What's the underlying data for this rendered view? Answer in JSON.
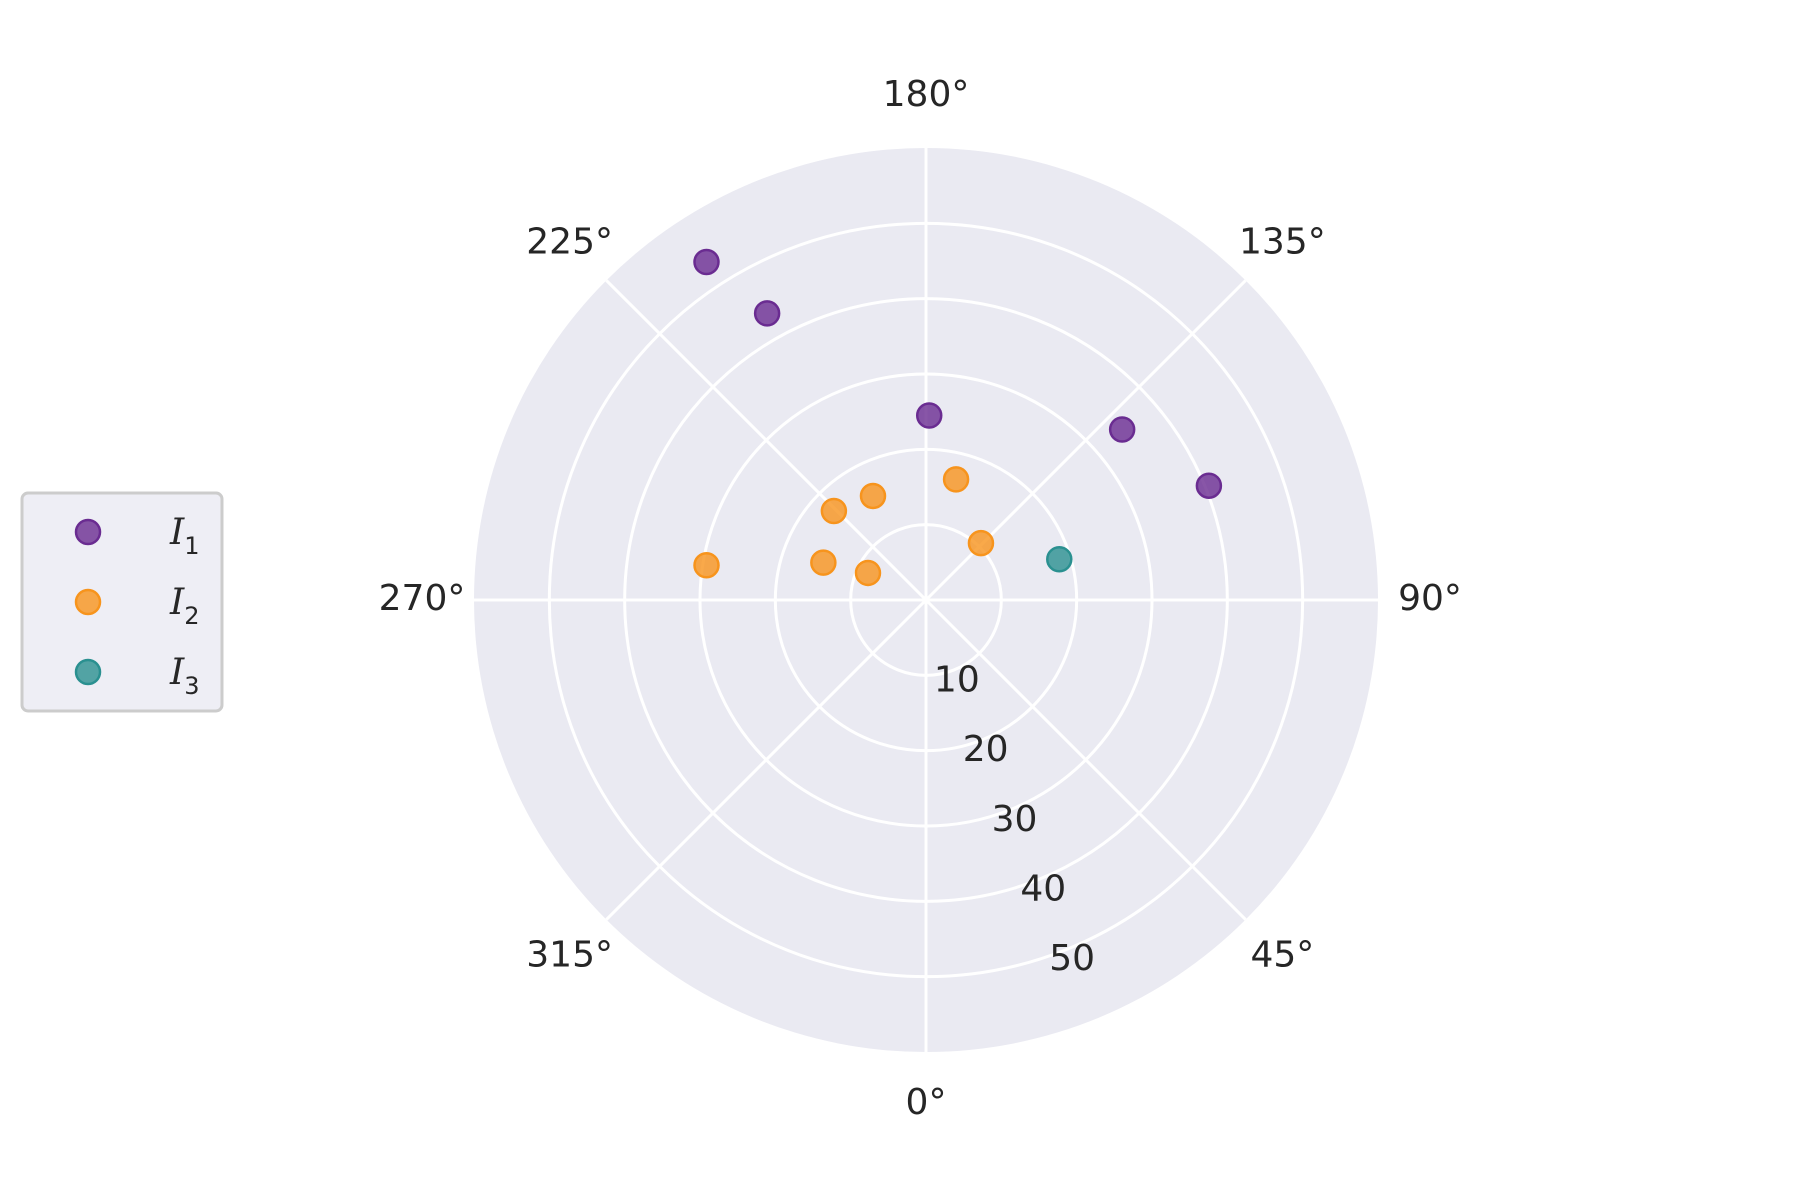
{
  "chart_data": {
    "type": "scatter",
    "projection": "polar",
    "theta_zero_location": "bottom",
    "theta_direction": "counterclockwise",
    "theta_ticks": [
      "0°",
      "45°",
      "90°",
      "135°",
      "180°",
      "225°",
      "270°",
      "315°"
    ],
    "r_ticks": [
      "10",
      "20",
      "30",
      "40",
      "50"
    ],
    "r_tick_values": [
      10,
      20,
      30,
      40,
      50
    ],
    "rlim": [
      0,
      60
    ],
    "grid": true,
    "legend_position": "center-left, outside plot",
    "series": [
      {
        "name": "I",
        "subscript": "1",
        "color": "#6a2c91",
        "points": [
          {
            "theta": 179,
            "r": 24.5
          },
          {
            "theta": 131,
            "r": 34.5
          },
          {
            "theta": 112,
            "r": 40.5
          },
          {
            "theta": 209,
            "r": 43.5
          },
          {
            "theta": 213,
            "r": 53.5
          }
        ]
      },
      {
        "name": "I",
        "subscript": "2",
        "color": "#f7941d",
        "points": [
          {
            "theta": 166,
            "r": 16.5
          },
          {
            "theta": 136,
            "r": 10.5
          },
          {
            "theta": 207,
            "r": 15.5
          },
          {
            "theta": 226,
            "r": 17.0
          },
          {
            "theta": 245,
            "r": 8.5
          },
          {
            "theta": 250,
            "r": 14.5
          },
          {
            "theta": 261,
            "r": 29.5
          }
        ]
      },
      {
        "name": "I",
        "subscript": "3",
        "color": "#2a9090",
        "points": [
          {
            "theta": 107,
            "r": 18.5
          }
        ]
      }
    ]
  }
}
